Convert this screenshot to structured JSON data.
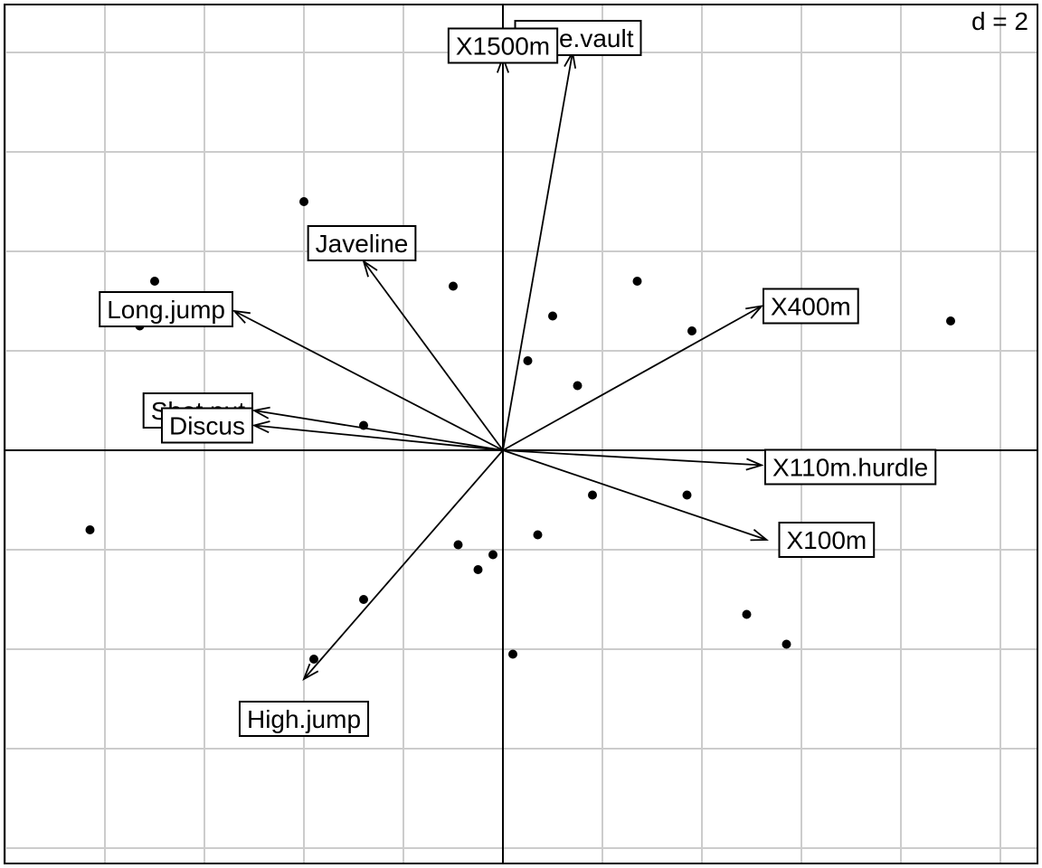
{
  "chart_data": {
    "type": "scatter",
    "title": "",
    "xlabel": "",
    "ylabel": "",
    "grid": true,
    "grid_interval": 2,
    "xlim": [
      -10.0,
      10.8
    ],
    "ylim": [
      -8.2,
      8.9
    ],
    "scale_label": "d = 2",
    "points": [
      {
        "x": -4.0,
        "y": 5.0
      },
      {
        "x": -7.0,
        "y": 3.4
      },
      {
        "x": -7.3,
        "y": 2.5
      },
      {
        "x": -1.0,
        "y": 3.3
      },
      {
        "x": 0.5,
        "y": 1.8
      },
      {
        "x": 1.0,
        "y": 2.7
      },
      {
        "x": 1.5,
        "y": 1.3
      },
      {
        "x": 2.7,
        "y": 3.4
      },
      {
        "x": 3.8,
        "y": 2.4
      },
      {
        "x": 9.0,
        "y": 2.6
      },
      {
        "x": -2.8,
        "y": 0.5
      },
      {
        "x": -8.3,
        "y": -1.6
      },
      {
        "x": 1.8,
        "y": -0.9
      },
      {
        "x": 3.7,
        "y": -0.9
      },
      {
        "x": 0.7,
        "y": -1.7
      },
      {
        "x": -0.9,
        "y": -1.9
      },
      {
        "x": -0.2,
        "y": -2.1
      },
      {
        "x": -0.5,
        "y": -2.4
      },
      {
        "x": 4.9,
        "y": -3.3
      },
      {
        "x": 5.7,
        "y": -3.9
      },
      {
        "x": -2.8,
        "y": -3.0
      },
      {
        "x": -3.8,
        "y": -4.2
      },
      {
        "x": 0.2,
        "y": -4.1
      }
    ],
    "arrows": [
      {
        "name": "X100m",
        "x": 5.3,
        "y": -1.8
      },
      {
        "name": "Long.jump",
        "x": -5.4,
        "y": 2.8
      },
      {
        "name": "Shot.put",
        "x": -5.0,
        "y": 0.8
      },
      {
        "name": "High.jump",
        "x": -4.0,
        "y": -4.6
      },
      {
        "name": "X400m",
        "x": 5.2,
        "y": 2.9
      },
      {
        "name": "X110m.hurdle",
        "x": 5.2,
        "y": -0.3
      },
      {
        "name": "Discus",
        "x": -5.0,
        "y": 0.5
      },
      {
        "name": "Pole.vault",
        "x": 1.4,
        "y": 8.0
      },
      {
        "name": "Javeline",
        "x": -2.8,
        "y": 3.8
      },
      {
        "name": "X1500m",
        "x": 0.0,
        "y": 7.9
      }
    ],
    "visible_labels": {
      "X100m": "X100m",
      "Long.jump": "Long.jump",
      "Shot.put": "Shot.put",
      "High.jump": "High.jump",
      "X400m": "X400m",
      "X110m.hurdle": "X110m.hurdle",
      "Discus": "Discus",
      "Pole.vault": "Pole.vault",
      "Javeline": "Javeline",
      "X1500m": "X1500m"
    }
  }
}
